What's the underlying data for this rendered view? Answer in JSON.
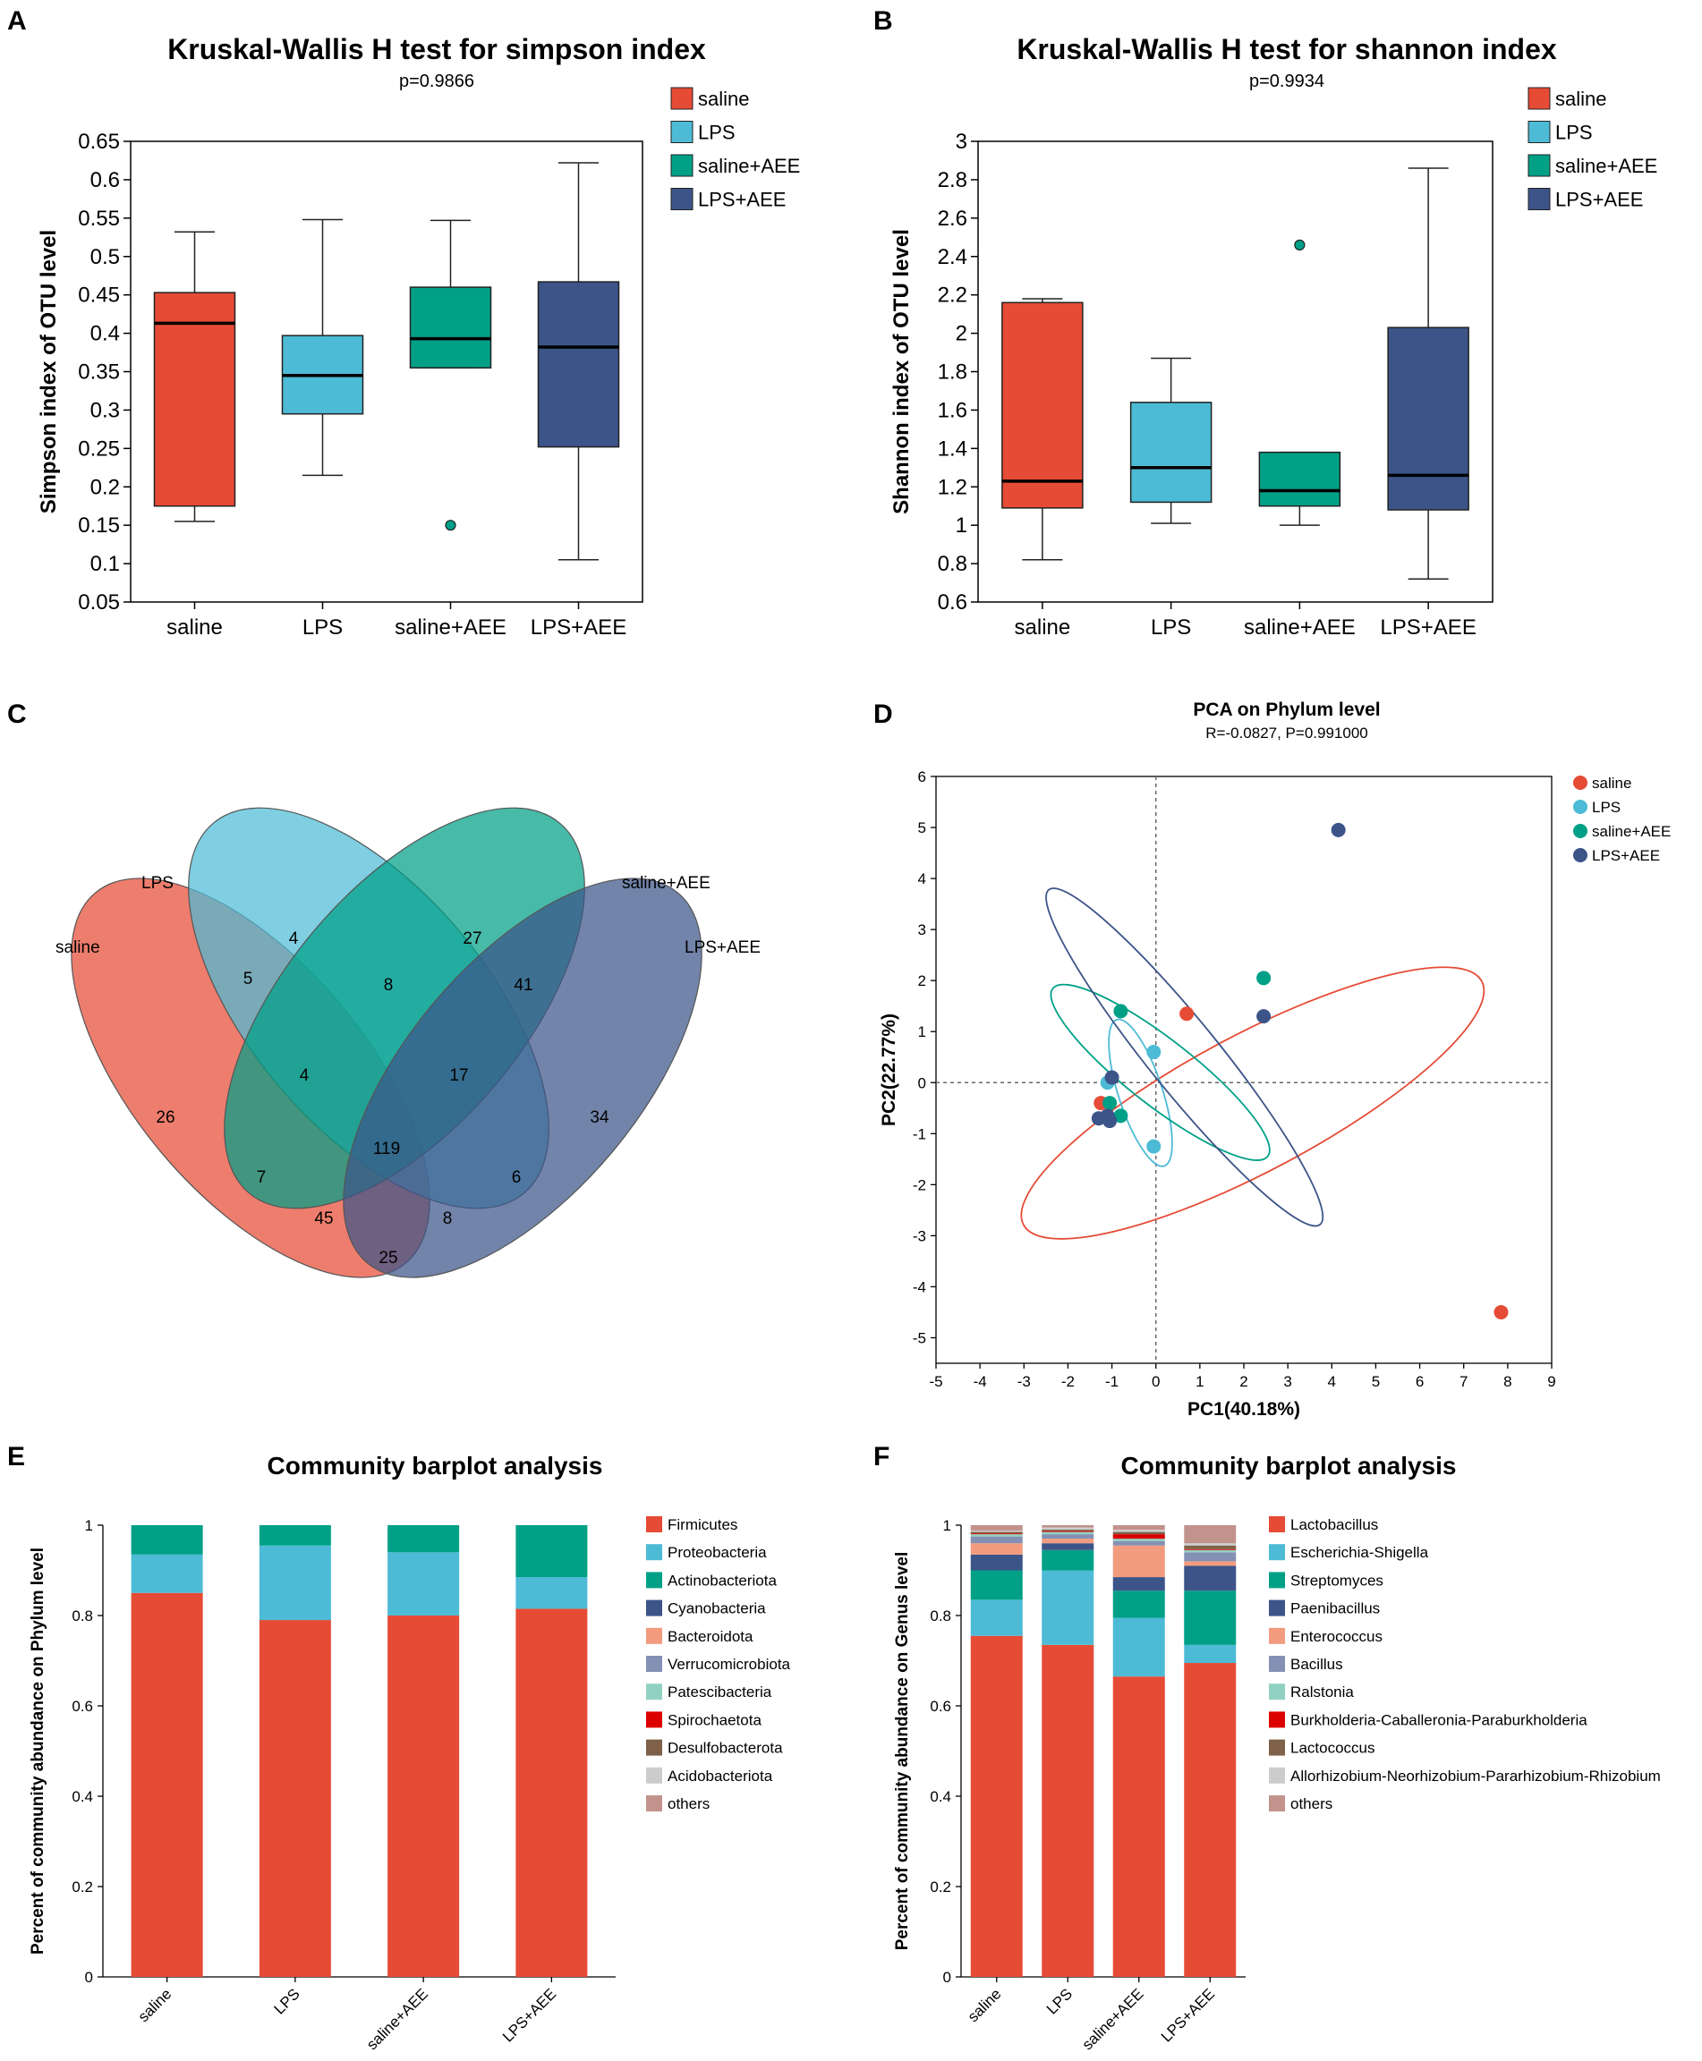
{
  "chart_data": [
    {
      "panel": "A",
      "type": "box",
      "title": "Kruskal-Wallis H test for simpson index",
      "subtitle": "p=0.9866",
      "ylabel": "Simpson index of OTU level",
      "ylim": [
        0.05,
        0.65
      ],
      "yticks": [
        "0.05",
        "0.1",
        "0.15",
        "0.2",
        "0.25",
        "0.3",
        "0.35",
        "0.4",
        "0.45",
        "0.5",
        "0.55",
        "0.6",
        "0.65"
      ],
      "categories": [
        "saline",
        "LPS",
        "saline+AEE",
        "LPS+AEE"
      ],
      "colors": [
        "#e64b35",
        "#4dbbd5",
        "#00a087",
        "#3c5488"
      ],
      "legend": [
        "saline",
        "LPS",
        "saline+AEE",
        "LPS+AEE"
      ],
      "boxes": [
        {
          "min": 0.155,
          "q1": 0.175,
          "median": 0.413,
          "q3": 0.453,
          "max": 0.532,
          "outliers": []
        },
        {
          "min": 0.215,
          "q1": 0.295,
          "median": 0.345,
          "q3": 0.397,
          "max": 0.548,
          "outliers": []
        },
        {
          "min": 0.355,
          "q1": 0.355,
          "median": 0.393,
          "q3": 0.46,
          "max": 0.547,
          "outliers": [
            0.15
          ]
        },
        {
          "min": 0.105,
          "q1": 0.252,
          "median": 0.382,
          "q3": 0.467,
          "max": 0.622,
          "outliers": []
        }
      ]
    },
    {
      "panel": "B",
      "type": "box",
      "title": "Kruskal-Wallis H test for shannon index",
      "subtitle": "p=0.9934",
      "ylabel": "Shannon index of OTU level",
      "ylim": [
        0.6,
        3.0
      ],
      "yticks": [
        "0.6",
        "0.8",
        "1",
        "1.2",
        "1.4",
        "1.6",
        "1.8",
        "2",
        "2.2",
        "2.4",
        "2.6",
        "2.8",
        "3"
      ],
      "categories": [
        "saline",
        "LPS",
        "saline+AEE",
        "LPS+AEE"
      ],
      "colors": [
        "#e64b35",
        "#4dbbd5",
        "#00a087",
        "#3c5488"
      ],
      "legend": [
        "saline",
        "LPS",
        "saline+AEE",
        "LPS+AEE"
      ],
      "boxes": [
        {
          "min": 0.82,
          "q1": 1.09,
          "median": 1.23,
          "q3": 2.16,
          "max": 2.18,
          "outliers": []
        },
        {
          "min": 1.01,
          "q1": 1.12,
          "median": 1.3,
          "q3": 1.64,
          "max": 1.87,
          "outliers": []
        },
        {
          "min": 1.0,
          "q1": 1.1,
          "median": 1.18,
          "q3": 1.38,
          "max": 1.38,
          "outliers": [
            2.46
          ]
        },
        {
          "min": 0.72,
          "q1": 1.08,
          "median": 1.26,
          "q3": 2.03,
          "max": 2.86,
          "outliers": []
        }
      ]
    },
    {
      "panel": "C",
      "type": "venn",
      "sets": [
        "saline",
        "LPS",
        "saline+AEE",
        "LPS+AEE"
      ],
      "colors": [
        "#e64b35",
        "#4dbbd5",
        "#00a087",
        "#3c5488"
      ],
      "regions": [
        {
          "sets": [
            "saline"
          ],
          "value": "26"
        },
        {
          "sets": [
            "LPS"
          ],
          "value": "4"
        },
        {
          "sets": [
            "saline+AEE"
          ],
          "value": "27"
        },
        {
          "sets": [
            "LPS+AEE"
          ],
          "value": "34"
        },
        {
          "sets": [
            "saline",
            "LPS"
          ],
          "value": "5"
        },
        {
          "sets": [
            "LPS",
            "saline+AEE"
          ],
          "value": "8"
        },
        {
          "sets": [
            "saline+AEE",
            "LPS+AEE"
          ],
          "value": "41"
        },
        {
          "sets": [
            "saline",
            "LPS",
            "saline+AEE"
          ],
          "value": "4"
        },
        {
          "sets": [
            "LPS",
            "saline+AEE",
            "LPS+AEE"
          ],
          "value": "17"
        },
        {
          "sets": [
            "saline",
            "LPS",
            "saline+AEE",
            "LPS+AEE"
          ],
          "value": "119"
        },
        {
          "sets": [
            "saline",
            "saline+AEE"
          ],
          "value": "7"
        },
        {
          "sets": [
            "LPS",
            "LPS+AEE"
          ],
          "value": "6"
        },
        {
          "sets": [
            "saline",
            "saline+AEE",
            "LPS+AEE"
          ],
          "value": "45"
        },
        {
          "sets": [
            "saline",
            "LPS",
            "LPS+AEE"
          ],
          "value": "8"
        },
        {
          "sets": [
            "saline",
            "LPS+AEE"
          ],
          "value": "25"
        }
      ]
    },
    {
      "panel": "D",
      "type": "scatter",
      "title": "PCA on Phylum level",
      "subtitle": "R=-0.0827, P=0.991000",
      "xlabel": "PC1(40.18%)",
      "ylabel": "PC2(22.77%)",
      "xlim": [
        -5,
        9
      ],
      "ylim": [
        -5.5,
        6
      ],
      "xticks": [
        "-5",
        "-4",
        "-3",
        "-2",
        "-1",
        "0",
        "1",
        "2",
        "3",
        "4",
        "5",
        "6",
        "7",
        "8",
        "9"
      ],
      "yticks": [
        "-5",
        "-4",
        "-3",
        "-2",
        "-1",
        "0",
        "1",
        "2",
        "3",
        "4",
        "5",
        "6"
      ],
      "legend": [
        "saline",
        "LPS",
        "saline+AEE",
        "LPS+AEE"
      ],
      "colors": [
        "#e64b35",
        "#4dbbd5",
        "#00a087",
        "#3c5488"
      ],
      "series": [
        {
          "name": "saline",
          "points": [
            [
              0.7,
              1.35
            ],
            [
              7.85,
              -4.5
            ],
            [
              -1.25,
              -0.4
            ]
          ],
          "ellipse": {
            "cx": 2.2,
            "cy": -0.4,
            "rx": 5.9,
            "ry": 1.55,
            "angle": -28
          }
        },
        {
          "name": "LPS",
          "points": [
            [
              -0.05,
              0.6
            ],
            [
              -0.05,
              -1.25
            ],
            [
              -1.1,
              0.0
            ]
          ],
          "ellipse": {
            "cx": -0.35,
            "cy": -0.2,
            "rx": 1.75,
            "ry": 0.5,
            "angle": 72
          }
        },
        {
          "name": "saline+AEE",
          "points": [
            [
              -0.8,
              1.4
            ],
            [
              2.45,
              2.05
            ],
            [
              -1.05,
              -0.4
            ],
            [
              -0.8,
              -0.65
            ]
          ],
          "ellipse": {
            "cx": 0.1,
            "cy": 0.2,
            "rx": 3.1,
            "ry": 0.75,
            "angle": 38
          }
        },
        {
          "name": "LPS+AEE",
          "points": [
            [
              4.15,
              4.95
            ],
            [
              2.45,
              1.3
            ],
            [
              -1.3,
              -0.7
            ],
            [
              -1.05,
              -0.75
            ],
            [
              -1.0,
              0.1
            ],
            [
              -1.1,
              -0.65
            ]
          ],
          "ellipse": {
            "cx": 0.65,
            "cy": 0.5,
            "rx": 4.9,
            "ry": 0.8,
            "angle": 51
          }
        }
      ]
    },
    {
      "panel": "E",
      "type": "stacked_bar",
      "title": "Community barplot analysis",
      "ylabel": "Percent of community abundance on Phylum level",
      "ylim": [
        0,
        1
      ],
      "yticks": [
        "0",
        "0.2",
        "0.4",
        "0.6",
        "0.8",
        "1"
      ],
      "categories": [
        "saline",
        "LPS",
        "saline+AEE",
        "LPS+AEE"
      ],
      "series": [
        {
          "name": "Firmicutes",
          "color": "#e64b35",
          "values": [
            0.85,
            0.79,
            0.8,
            0.815
          ]
        },
        {
          "name": "Proteobacteria",
          "color": "#4dbbd5",
          "values": [
            0.085,
            0.165,
            0.14,
            0.07
          ]
        },
        {
          "name": "Actinobacteriota",
          "color": "#00a087",
          "values": [
            0.065,
            0.045,
            0.06,
            0.115
          ]
        },
        {
          "name": "Cyanobacteria",
          "color": "#3c5488",
          "values": [
            0,
            0,
            0,
            0
          ]
        },
        {
          "name": "Bacteroidota",
          "color": "#f39b7f",
          "values": [
            0,
            0,
            0,
            0
          ]
        },
        {
          "name": "Verrucomicrobiota",
          "color": "#8491b4",
          "values": [
            0,
            0,
            0,
            0
          ]
        },
        {
          "name": "Patescibacteria",
          "color": "#91d1c2",
          "values": [
            0,
            0,
            0,
            0
          ]
        },
        {
          "name": "Spirochaetota",
          "color": "#dc0000",
          "values": [
            0,
            0,
            0,
            0
          ]
        },
        {
          "name": "Desulfobacterota",
          "color": "#7e6148",
          "values": [
            0,
            0,
            0,
            0
          ]
        },
        {
          "name": "Acidobacteriota",
          "color": "#cccccc",
          "values": [
            0,
            0,
            0,
            0
          ]
        },
        {
          "name": "others",
          "color": "#c2938d",
          "values": [
            0,
            0,
            0,
            0
          ]
        }
      ]
    },
    {
      "panel": "F",
      "type": "stacked_bar",
      "title": "Community barplot analysis",
      "ylabel": "Percent of community abundance on Genus level",
      "ylim": [
        0,
        1
      ],
      "yticks": [
        "0",
        "0.2",
        "0.4",
        "0.6",
        "0.8",
        "1"
      ],
      "categories": [
        "saline",
        "LPS",
        "saline+AEE",
        "LPS+AEE"
      ],
      "series": [
        {
          "name": "Lactobacillus",
          "color": "#e64b35",
          "values": [
            0.755,
            0.735,
            0.665,
            0.695
          ]
        },
        {
          "name": "Escherichia-Shigella",
          "color": "#4dbbd5",
          "values": [
            0.08,
            0.165,
            0.13,
            0.04
          ]
        },
        {
          "name": "Streptomyces",
          "color": "#00a087",
          "values": [
            0.065,
            0.045,
            0.06,
            0.12
          ]
        },
        {
          "name": "Paenibacillus",
          "color": "#3c5488",
          "values": [
            0.035,
            0.015,
            0.03,
            0.055
          ]
        },
        {
          "name": "Enterococcus",
          "color": "#f39b7f",
          "values": [
            0.025,
            0.01,
            0.07,
            0.01
          ]
        },
        {
          "name": "Bacillus",
          "color": "#8491b4",
          "values": [
            0.015,
            0.01,
            0.01,
            0.02
          ]
        },
        {
          "name": "Ralstonia",
          "color": "#91d1c2",
          "values": [
            0.005,
            0.005,
            0.005,
            0.005
          ]
        },
        {
          "name": "Burkholderia-Caballeronia-Paraburkholderia",
          "color": "#dc0000",
          "values": [
            0.002,
            0.002,
            0.01,
            0.002
          ]
        },
        {
          "name": "Lactococcus",
          "color": "#7e6148",
          "values": [
            0.003,
            0.003,
            0.005,
            0.008
          ]
        },
        {
          "name": "Allorhizobium-Neorhizobium-Pararhizobium-Rhizobium",
          "color": "#cccccc",
          "values": [
            0.003,
            0.005,
            0.005,
            0.005
          ]
        },
        {
          "name": "others",
          "color": "#c2938d",
          "values": [
            0.012,
            0.005,
            0.01,
            0.04
          ]
        }
      ]
    }
  ]
}
